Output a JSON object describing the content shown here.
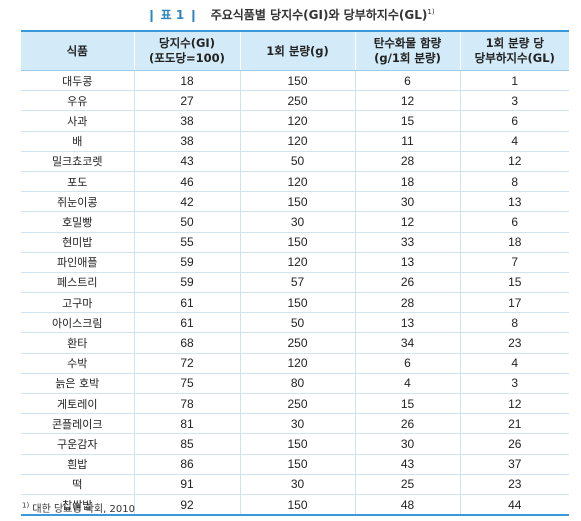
{
  "caption": {
    "label": "❙ 표 1 ❙",
    "title": "주요식품별 당지수(GI)와 당부하지수(GL)",
    "footnote_mark": "1)"
  },
  "table": {
    "headers": [
      {
        "line1": "식품",
        "line2": ""
      },
      {
        "line1": "당지수(GI)",
        "line2": "(포도당=100)"
      },
      {
        "line1": "1회 분량(g)",
        "line2": ""
      },
      {
        "line1": "탄수화물 함량",
        "line2": "(g/1회 분량)"
      },
      {
        "line1": "1회 분량 당",
        "line2": "당부하지수(GL)"
      }
    ],
    "rows": [
      [
        "대두콩",
        "18",
        "150",
        "6",
        "1"
      ],
      [
        "우유",
        "27",
        "250",
        "12",
        "3"
      ],
      [
        "사과",
        "38",
        "120",
        "15",
        "6"
      ],
      [
        "배",
        "38",
        "120",
        "11",
        "4"
      ],
      [
        "밀크쵸코렛",
        "43",
        "50",
        "28",
        "12"
      ],
      [
        "포도",
        "46",
        "120",
        "18",
        "8"
      ],
      [
        "쥐눈이콩",
        "42",
        "150",
        "30",
        "13"
      ],
      [
        "호밀빵",
        "50",
        "30",
        "12",
        "6"
      ],
      [
        "현미밥",
        "55",
        "150",
        "33",
        "18"
      ],
      [
        "파인애플",
        "59",
        "120",
        "13",
        "7"
      ],
      [
        "페스트리",
        "59",
        "57",
        "26",
        "15"
      ],
      [
        "고구마",
        "61",
        "150",
        "28",
        "17"
      ],
      [
        "아이스크림",
        "61",
        "50",
        "13",
        "8"
      ],
      [
        "환타",
        "68",
        "250",
        "34",
        "23"
      ],
      [
        "수박",
        "72",
        "120",
        "6",
        "4"
      ],
      [
        "늙은 호박",
        "75",
        "80",
        "4",
        "3"
      ],
      [
        "게토레이",
        "78",
        "250",
        "15",
        "12"
      ],
      [
        "콘플레이크",
        "81",
        "30",
        "26",
        "21"
      ],
      [
        "구운감자",
        "85",
        "150",
        "30",
        "26"
      ],
      [
        "흰밥",
        "86",
        "150",
        "43",
        "37"
      ],
      [
        "떡",
        "91",
        "30",
        "25",
        "23"
      ],
      [
        "찹쌀밥",
        "92",
        "150",
        "48",
        "44"
      ]
    ]
  },
  "footnote": {
    "mark": "1)",
    "text": "대한 당뇨병 학회, 2010"
  }
}
